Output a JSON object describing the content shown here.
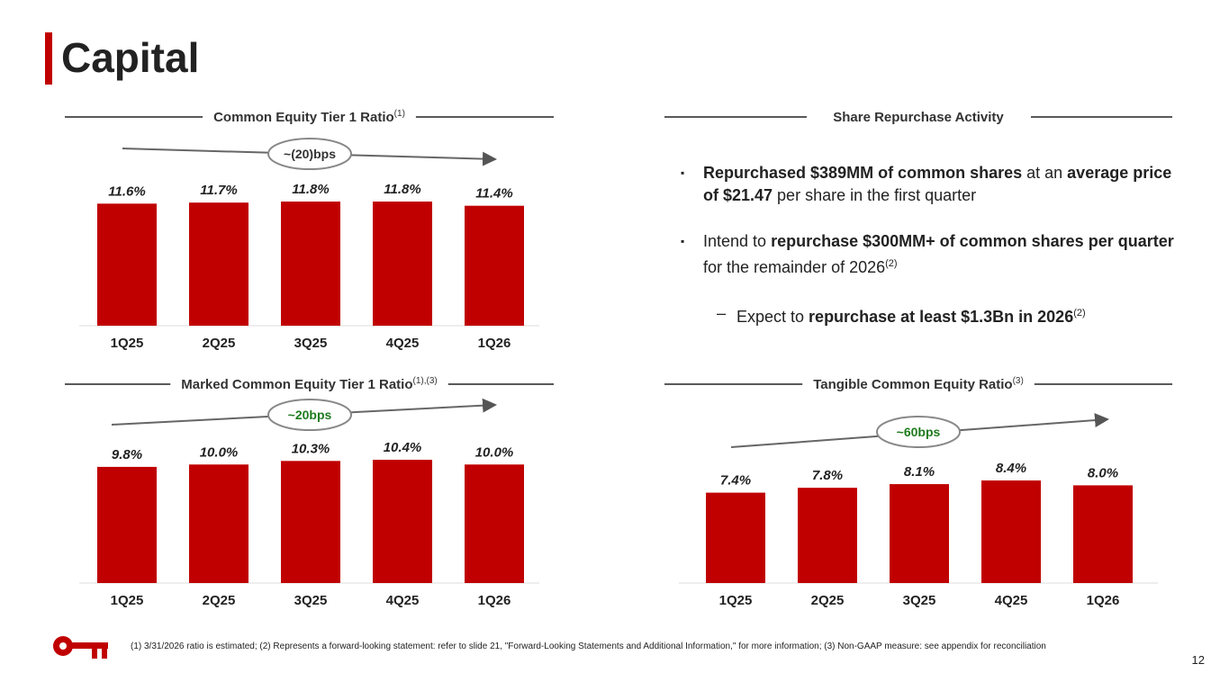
{
  "title": "Capital",
  "chart_data": [
    {
      "type": "bar",
      "title": "Common Equity Tier 1 Ratio",
      "title_note": "(1)",
      "categories": [
        "1Q25",
        "2Q25",
        "3Q25",
        "4Q25",
        "1Q26"
      ],
      "values": [
        11.6,
        11.7,
        11.8,
        11.8,
        11.4
      ],
      "value_labels": [
        "11.6%",
        "11.7%",
        "11.8%",
        "11.8%",
        "11.4%"
      ],
      "color": "#c00000",
      "annotation": "~(20)bps",
      "annotation_color": "#333333"
    },
    {
      "type": "bar",
      "title": "Marked Common Equity Tier 1 Ratio",
      "title_note": "(1),(3)",
      "categories": [
        "1Q25",
        "2Q25",
        "3Q25",
        "4Q25",
        "1Q26"
      ],
      "values": [
        9.8,
        10.0,
        10.3,
        10.4,
        10.0
      ],
      "value_labels": [
        "9.8%",
        "10.0%",
        "10.3%",
        "10.4%",
        "10.0%"
      ],
      "color": "#c00000",
      "annotation": "~20bps",
      "annotation_color": "#1e7b1e"
    },
    {
      "type": "bar",
      "title": "Tangible Common Equity Ratio",
      "title_note": "(3)",
      "categories": [
        "1Q25",
        "2Q25",
        "3Q25",
        "4Q25",
        "1Q26"
      ],
      "values": [
        7.4,
        7.8,
        8.1,
        8.4,
        8.0
      ],
      "value_labels": [
        "7.4%",
        "7.8%",
        "8.1%",
        "8.4%",
        "8.0%"
      ],
      "color": "#c00000",
      "annotation": "~60bps",
      "annotation_color": "#1e7b1e"
    }
  ],
  "repurchase": {
    "title": "Share Repurchase Activity",
    "items": [
      [
        {
          "text": "Repurchased $389MM of common shares",
          "bold": true
        },
        {
          "text": " at an "
        },
        {
          "text": "average price of $21.47",
          "bold": true
        },
        {
          "text": " per share in the first quarter"
        }
      ],
      [
        {
          "text": "Intend to "
        },
        {
          "text": "repurchase $300MM+ of common shares per quarter",
          "bold": true
        },
        {
          "text": " for the remainder of 2026"
        },
        {
          "text": "(2)",
          "sup": true
        }
      ],
      [
        {
          "text": "Expect to "
        },
        {
          "text": "repurchase at least $1.3Bn in 2026",
          "bold": true
        },
        {
          "text": "(2)",
          "sup": true
        }
      ]
    ]
  },
  "footnote": "(1) 3/31/2026 ratio is estimated; (2) Represents a forward-looking statement: refer to slide 21, \"Forward-Looking Statements and Additional Information,\" for more information; (3) Non-GAAP measure: see appendix for reconciliation",
  "page_number": "12"
}
